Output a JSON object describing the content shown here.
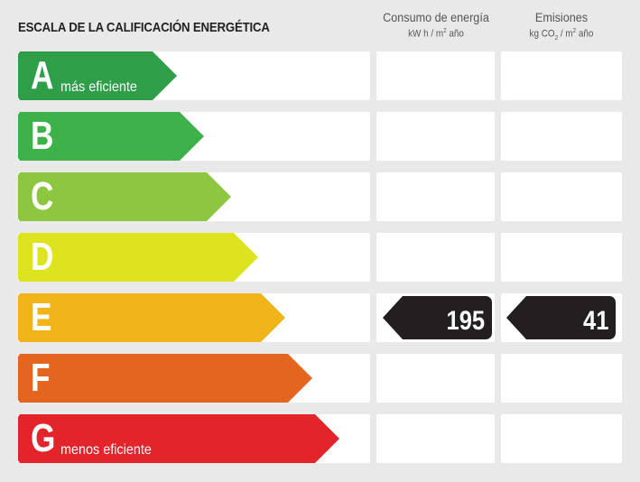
{
  "title": "ESCALA DE LA CALIFICACIÓN ENERGÉTICA",
  "columns": {
    "consumption": {
      "label": "Consumo de energía",
      "unit_prefix": "kW h / m",
      "unit_sup": "2",
      "unit_suffix": " año"
    },
    "emissions": {
      "label": "Emisiones",
      "unit_prefix": "kg CO",
      "unit_sub": "2",
      "unit_mid": " / m",
      "unit_sup": "2",
      "unit_suffix": " año"
    }
  },
  "classes": [
    {
      "letter": "A",
      "label": "más eficiente",
      "color": "#2e9e48"
    },
    {
      "letter": "B",
      "label": "",
      "color": "#3db249"
    },
    {
      "letter": "C",
      "label": "",
      "color": "#8dc63f"
    },
    {
      "letter": "D",
      "label": "",
      "color": "#dde31c"
    },
    {
      "letter": "E",
      "label": "",
      "color": "#f0b318"
    },
    {
      "letter": "F",
      "label": "",
      "color": "#e3651f"
    },
    {
      "letter": "G",
      "label": "menos eficiente",
      "color": "#e3242b"
    }
  ],
  "rating": {
    "class": "E",
    "consumption": "195",
    "emissions": "41"
  }
}
